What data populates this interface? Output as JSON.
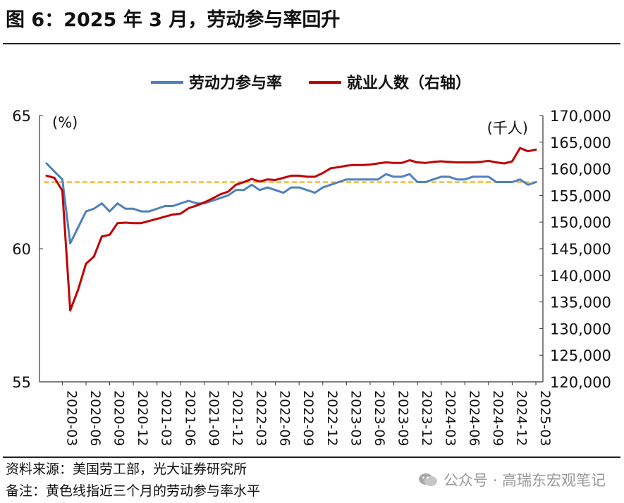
{
  "title": "图 6：2025 年 3 月，劳动参与率回升",
  "footer": {
    "source": "资料来源：美国劳工部，光大证券研究所",
    "note": "备注：黄色线指近三个月的劳动参与率水平"
  },
  "watermark": {
    "text": "公众号 · 高瑞东宏观笔记",
    "icon": "wechat-icon"
  },
  "chart_data": {
    "type": "line",
    "title": "",
    "left_axis": {
      "unit_label": "(%)",
      "ylim": [
        55,
        65
      ],
      "ticks": [
        "65",
        "60",
        "55"
      ]
    },
    "right_axis": {
      "unit_label": "(千人)",
      "ylim": [
        120000,
        170000
      ],
      "ticks": [
        "170,000",
        "165,000",
        "160,000",
        "155,000",
        "150,000",
        "145,000",
        "140,000",
        "135,000",
        "130,000",
        "125,000",
        "120,000"
      ]
    },
    "x_tick_labels": [
      "2020-03",
      "2020-06",
      "2020-09",
      "2020-12",
      "2021-03",
      "2021-06",
      "2021-09",
      "2021-12",
      "2022-03",
      "2022-06",
      "2022-09",
      "2022-12",
      "2023-03",
      "2023-06",
      "2023-09",
      "2023-12",
      "2024-03",
      "2024-06",
      "2024-09",
      "2024-12",
      "2025-03"
    ],
    "x": [
      "2020-01",
      "2020-02",
      "2020-03",
      "2020-04",
      "2020-05",
      "2020-06",
      "2020-07",
      "2020-08",
      "2020-09",
      "2020-10",
      "2020-11",
      "2020-12",
      "2021-01",
      "2021-02",
      "2021-03",
      "2021-04",
      "2021-05",
      "2021-06",
      "2021-07",
      "2021-08",
      "2021-09",
      "2021-10",
      "2021-11",
      "2021-12",
      "2022-01",
      "2022-02",
      "2022-03",
      "2022-04",
      "2022-05",
      "2022-06",
      "2022-07",
      "2022-08",
      "2022-09",
      "2022-10",
      "2022-11",
      "2022-12",
      "2023-01",
      "2023-02",
      "2023-03",
      "2023-04",
      "2023-05",
      "2023-06",
      "2023-07",
      "2023-08",
      "2023-09",
      "2023-10",
      "2023-11",
      "2023-12",
      "2024-01",
      "2024-02",
      "2024-03",
      "2024-04",
      "2024-05",
      "2024-06",
      "2024-07",
      "2024-08",
      "2024-09",
      "2024-10",
      "2024-11",
      "2024-12",
      "2025-01",
      "2025-02",
      "2025-03"
    ],
    "series": [
      {
        "name": "劳动力参与率",
        "axis": "left",
        "color": "#4f81bd",
        "values": [
          63.2,
          62.9,
          62.6,
          60.2,
          60.8,
          61.4,
          61.5,
          61.7,
          61.4,
          61.7,
          61.5,
          61.5,
          61.4,
          61.4,
          61.5,
          61.6,
          61.6,
          61.7,
          61.8,
          61.7,
          61.7,
          61.8,
          61.9,
          62.0,
          62.2,
          62.2,
          62.4,
          62.2,
          62.3,
          62.2,
          62.1,
          62.3,
          62.3,
          62.2,
          62.1,
          62.3,
          62.4,
          62.5,
          62.6,
          62.6,
          62.6,
          62.6,
          62.6,
          62.8,
          62.7,
          62.7,
          62.8,
          62.5,
          62.5,
          62.6,
          62.7,
          62.7,
          62.6,
          62.6,
          62.7,
          62.7,
          62.7,
          62.5,
          62.5,
          62.5,
          62.6,
          62.4,
          62.5
        ]
      },
      {
        "name": "就业人数（右轴）",
        "axis": "right",
        "color": "#c00000",
        "values": [
          158700,
          158300,
          155900,
          133400,
          137300,
          142200,
          143500,
          147300,
          147600,
          149800,
          149900,
          149800,
          149800,
          150200,
          150600,
          151000,
          151400,
          151600,
          152600,
          153100,
          153700,
          154400,
          155200,
          155700,
          157000,
          157500,
          158100,
          157600,
          158000,
          157900,
          158300,
          158700,
          158700,
          158500,
          158500,
          159200,
          160100,
          160300,
          160600,
          160700,
          160700,
          160800,
          161000,
          161200,
          161100,
          161100,
          161600,
          161200,
          161100,
          161300,
          161400,
          161300,
          161200,
          161200,
          161200,
          161300,
          161500,
          161200,
          161000,
          161400,
          163900,
          163300,
          163600
        ]
      }
    ],
    "reference_line": {
      "axis": "left",
      "value": 62.5,
      "color": "#f0b323",
      "style": "dashed"
    }
  }
}
